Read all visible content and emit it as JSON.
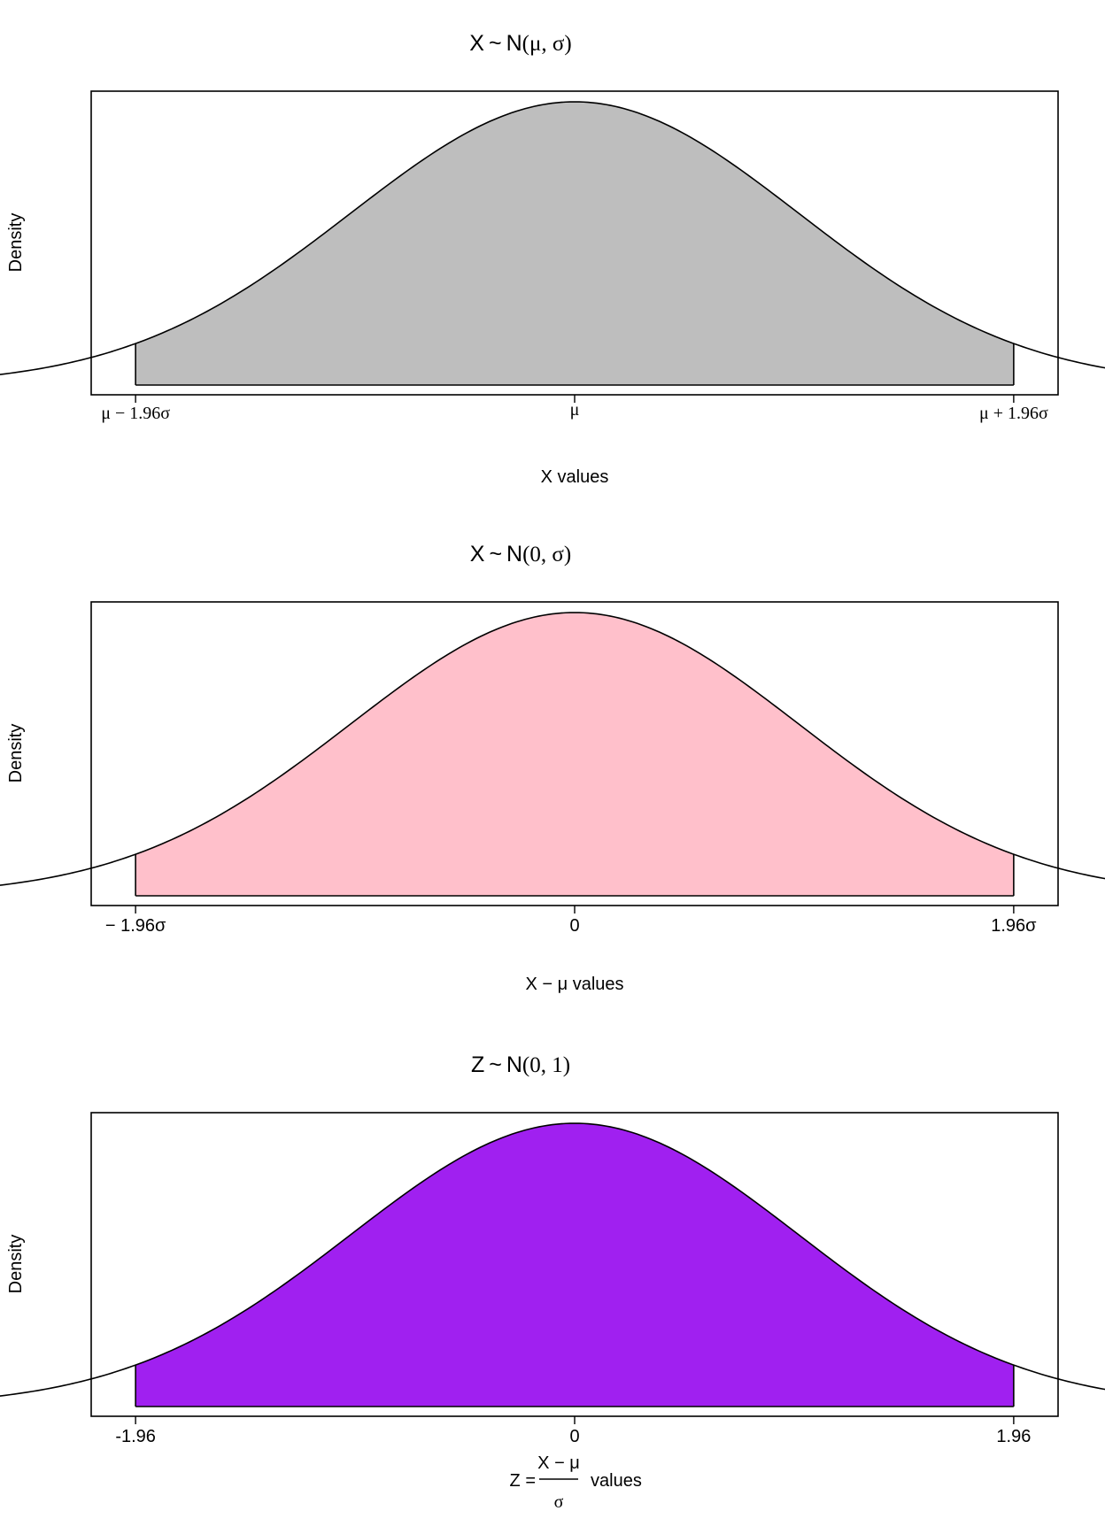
{
  "charts": [
    {
      "type": "area",
      "title": {
        "lhs": "X",
        "sep": "~",
        "dist": "N",
        "args": "(μ, σ)"
      },
      "ylabel": "Density",
      "xlabel": "X values",
      "fill_color": "#bebebe",
      "ticks": [
        {
          "value": -1.96,
          "label": "μ − 1.96σ"
        },
        {
          "value": 0,
          "label": "μ"
        },
        {
          "value": 1.96,
          "label": "μ + 1.96σ"
        }
      ]
    },
    {
      "type": "area",
      "title": {
        "lhs": "X",
        "sep": "~",
        "dist": "N",
        "args": "(0, σ)"
      },
      "ylabel": "Density",
      "xlabel": "X − μ values",
      "fill_color": "#ffc0cb",
      "ticks": [
        {
          "value": -1.96,
          "label": "− 1.96σ"
        },
        {
          "value": 0,
          "label": "0"
        },
        {
          "value": 1.96,
          "label": "1.96σ"
        }
      ]
    },
    {
      "type": "area",
      "title": {
        "lhs": "Z",
        "sep": "~",
        "dist": "N",
        "args": "(0, 1)"
      },
      "ylabel": "Density",
      "xlabel": {
        "prefix": "Z =",
        "numerator": "X − μ",
        "denominator": "σ",
        "suffix": "values"
      },
      "fill_color": "#a020f0",
      "ticks": [
        {
          "value": -1.96,
          "label": "-1.96"
        },
        {
          "value": 0,
          "label": "0"
        },
        {
          "value": 1.96,
          "label": "1.96"
        }
      ]
    }
  ],
  "chart_data": [
    {
      "type": "area",
      "xlim": [
        -4,
        4
      ],
      "curve": "normal density, mean 0, sd 1",
      "shaded_interval": [
        -1.96,
        1.96
      ],
      "x_ticks": [
        -1.96,
        0,
        1.96
      ]
    },
    {
      "type": "area",
      "xlim": [
        -4,
        4
      ],
      "curve": "normal density, mean 0, sd 1",
      "shaded_interval": [
        -1.96,
        1.96
      ],
      "x_ticks": [
        -1.96,
        0,
        1.96
      ]
    },
    {
      "type": "area",
      "xlim": [
        -4,
        4
      ],
      "curve": "normal density, mean 0, sd 1",
      "shaded_interval": [
        -1.96,
        1.96
      ],
      "x_ticks": [
        -1.96,
        0,
        1.96
      ]
    }
  ]
}
